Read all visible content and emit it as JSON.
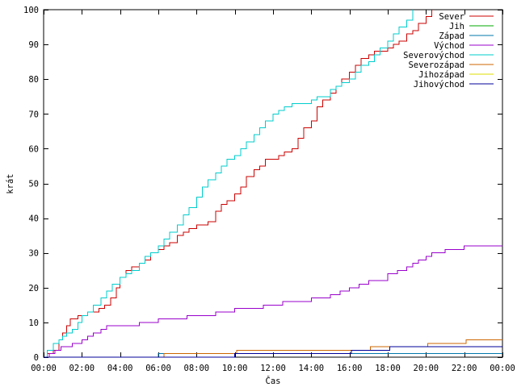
{
  "chart_data": {
    "type": "line",
    "title": "",
    "xlabel": "Čas",
    "ylabel": "krát",
    "xlim": [
      0,
      24
    ],
    "ylim": [
      0,
      100
    ],
    "x_ticks": [
      {
        "value": 0,
        "label": "00:00"
      },
      {
        "value": 2,
        "label": "02:00"
      },
      {
        "value": 4,
        "label": "04:00"
      },
      {
        "value": 6,
        "label": "06:00"
      },
      {
        "value": 8,
        "label": "08:00"
      },
      {
        "value": 10,
        "label": "10:00"
      },
      {
        "value": 12,
        "label": "12:00"
      },
      {
        "value": 14,
        "label": "14:00"
      },
      {
        "value": 16,
        "label": "16:00"
      },
      {
        "value": 18,
        "label": "18:00"
      },
      {
        "value": 20,
        "label": "20:00"
      },
      {
        "value": 22,
        "label": "22:00"
      },
      {
        "value": 24,
        "label": "00:00"
      }
    ],
    "y_ticks": [
      0,
      10,
      20,
      30,
      40,
      50,
      60,
      70,
      80,
      90,
      100
    ],
    "grid": false,
    "legend_position": "top-right",
    "series": [
      {
        "name": "Sever",
        "color": "#cc0000",
        "x": [
          0,
          0.2,
          0.5,
          0.8,
          1.0,
          1.2,
          1.4,
          1.6,
          1.8,
          2.0,
          2.3,
          2.6,
          2.9,
          3.2,
          3.5,
          3.8,
          4.0,
          4.3,
          4.6,
          5.0,
          5.3,
          5.6,
          6.0,
          6.3,
          6.6,
          7.0,
          7.3,
          7.6,
          8.0,
          8.3,
          8.6,
          9.0,
          9.3,
          9.6,
          10.0,
          10.3,
          10.6,
          11.0,
          11.3,
          11.6,
          12.0,
          12.3,
          12.6,
          13.0,
          13.3,
          13.6,
          14.0,
          14.3,
          14.6,
          15.0,
          15.3,
          15.6,
          16.0,
          16.3,
          16.6,
          17.0,
          17.3,
          17.6,
          18.0,
          18.3,
          18.6,
          19.0,
          19.3,
          19.6,
          20.0,
          20.3
        ],
        "y": [
          0,
          1,
          2,
          5,
          7,
          9,
          11,
          11,
          12,
          12,
          13,
          13,
          14,
          15,
          17,
          20,
          23,
          25,
          26,
          27,
          28,
          30,
          31,
          32,
          33,
          35,
          36,
          37,
          38,
          38,
          39,
          42,
          44,
          45,
          47,
          49,
          52,
          54,
          55,
          57,
          57,
          58,
          59,
          60,
          63,
          66,
          68,
          72,
          74,
          76,
          78,
          80,
          82,
          84,
          86,
          87,
          88,
          88,
          89,
          90,
          91,
          93,
          94,
          96,
          98,
          100
        ]
      },
      {
        "name": "Jih",
        "color": "#00aa00",
        "x": [],
        "y": []
      },
      {
        "name": "Západ",
        "color": "#0077aa",
        "x": [
          0,
          5.9,
          6.0,
          24
        ],
        "y": [
          0,
          0,
          1,
          1
        ]
      },
      {
        "name": "Východ",
        "color": "#9900cc",
        "x": [
          0,
          0.3,
          0.6,
          0.9,
          1.5,
          2.0,
          2.3,
          2.6,
          3.0,
          3.3,
          3.6,
          4.0,
          5.0,
          5.5,
          6.0,
          7.0,
          7.5,
          8.0,
          9.0,
          9.5,
          10.0,
          11.0,
          11.5,
          12.0,
          12.5,
          13.0,
          14.0,
          15.0,
          15.5,
          16.0,
          16.5,
          17.0,
          18.0,
          18.5,
          19.0,
          19.3,
          19.6,
          20.0,
          20.3,
          20.6,
          21.0,
          21.5,
          22.0,
          23.0,
          24.0
        ],
        "y": [
          0,
          1,
          2,
          3,
          4,
          5,
          6,
          7,
          8,
          9,
          9,
          9,
          10,
          10,
          11,
          11,
          12,
          12,
          13,
          13,
          14,
          14,
          15,
          15,
          16,
          16,
          17,
          18,
          19,
          20,
          21,
          22,
          24,
          25,
          26,
          27,
          28,
          29,
          30,
          30,
          31,
          31,
          32,
          32,
          32
        ]
      },
      {
        "name": "Severovýchod",
        "color": "#00cccc",
        "x": [
          0,
          0.2,
          0.5,
          0.8,
          1.0,
          1.2,
          1.5,
          1.8,
          2.0,
          2.3,
          2.6,
          3.0,
          3.3,
          3.6,
          4.0,
          4.3,
          4.6,
          5.0,
          5.3,
          5.6,
          6.0,
          6.3,
          6.6,
          7.0,
          7.3,
          7.6,
          8.0,
          8.3,
          8.6,
          9.0,
          9.3,
          9.6,
          10.0,
          10.3,
          10.6,
          11.0,
          11.3,
          11.6,
          12.0,
          12.3,
          12.6,
          13.0,
          13.3,
          13.6,
          14.0,
          14.3,
          14.6,
          15.0,
          15.3,
          15.6,
          16.0,
          16.3,
          16.6,
          17.0,
          17.3,
          17.6,
          18.0,
          18.3,
          18.6,
          19.0,
          19.3
        ],
        "y": [
          0,
          2,
          4,
          5,
          6,
          7,
          8,
          10,
          12,
          13,
          15,
          17,
          19,
          21,
          23,
          24,
          25,
          27,
          29,
          30,
          32,
          34,
          36,
          38,
          41,
          43,
          46,
          49,
          51,
          53,
          55,
          57,
          58,
          60,
          62,
          64,
          66,
          68,
          70,
          71,
          72,
          73,
          73,
          73,
          74,
          75,
          75,
          77,
          78,
          79,
          80,
          82,
          84,
          85,
          87,
          89,
          91,
          93,
          95,
          97,
          100
        ]
      },
      {
        "name": "Severozápad",
        "color": "#cc6600",
        "x": [
          0,
          6.2,
          6.3,
          10.0,
          10.1,
          17.0,
          17.1,
          20.0,
          20.1,
          22.0,
          22.1,
          24.0
        ],
        "y": [
          0,
          0,
          1,
          1,
          2,
          2,
          3,
          3,
          4,
          4,
          5,
          5
        ]
      },
      {
        "name": "Jihozápad",
        "color": "#dddd00",
        "x": [],
        "y": []
      },
      {
        "name": "Jihovýchod",
        "color": "#000099",
        "x": [
          0,
          9.9,
          10.0,
          12.4,
          12.5,
          16.0,
          16.1,
          18.0,
          18.1,
          24.0
        ],
        "y": [
          0,
          0,
          1,
          1,
          1,
          1,
          2,
          2,
          3,
          3
        ]
      }
    ]
  }
}
